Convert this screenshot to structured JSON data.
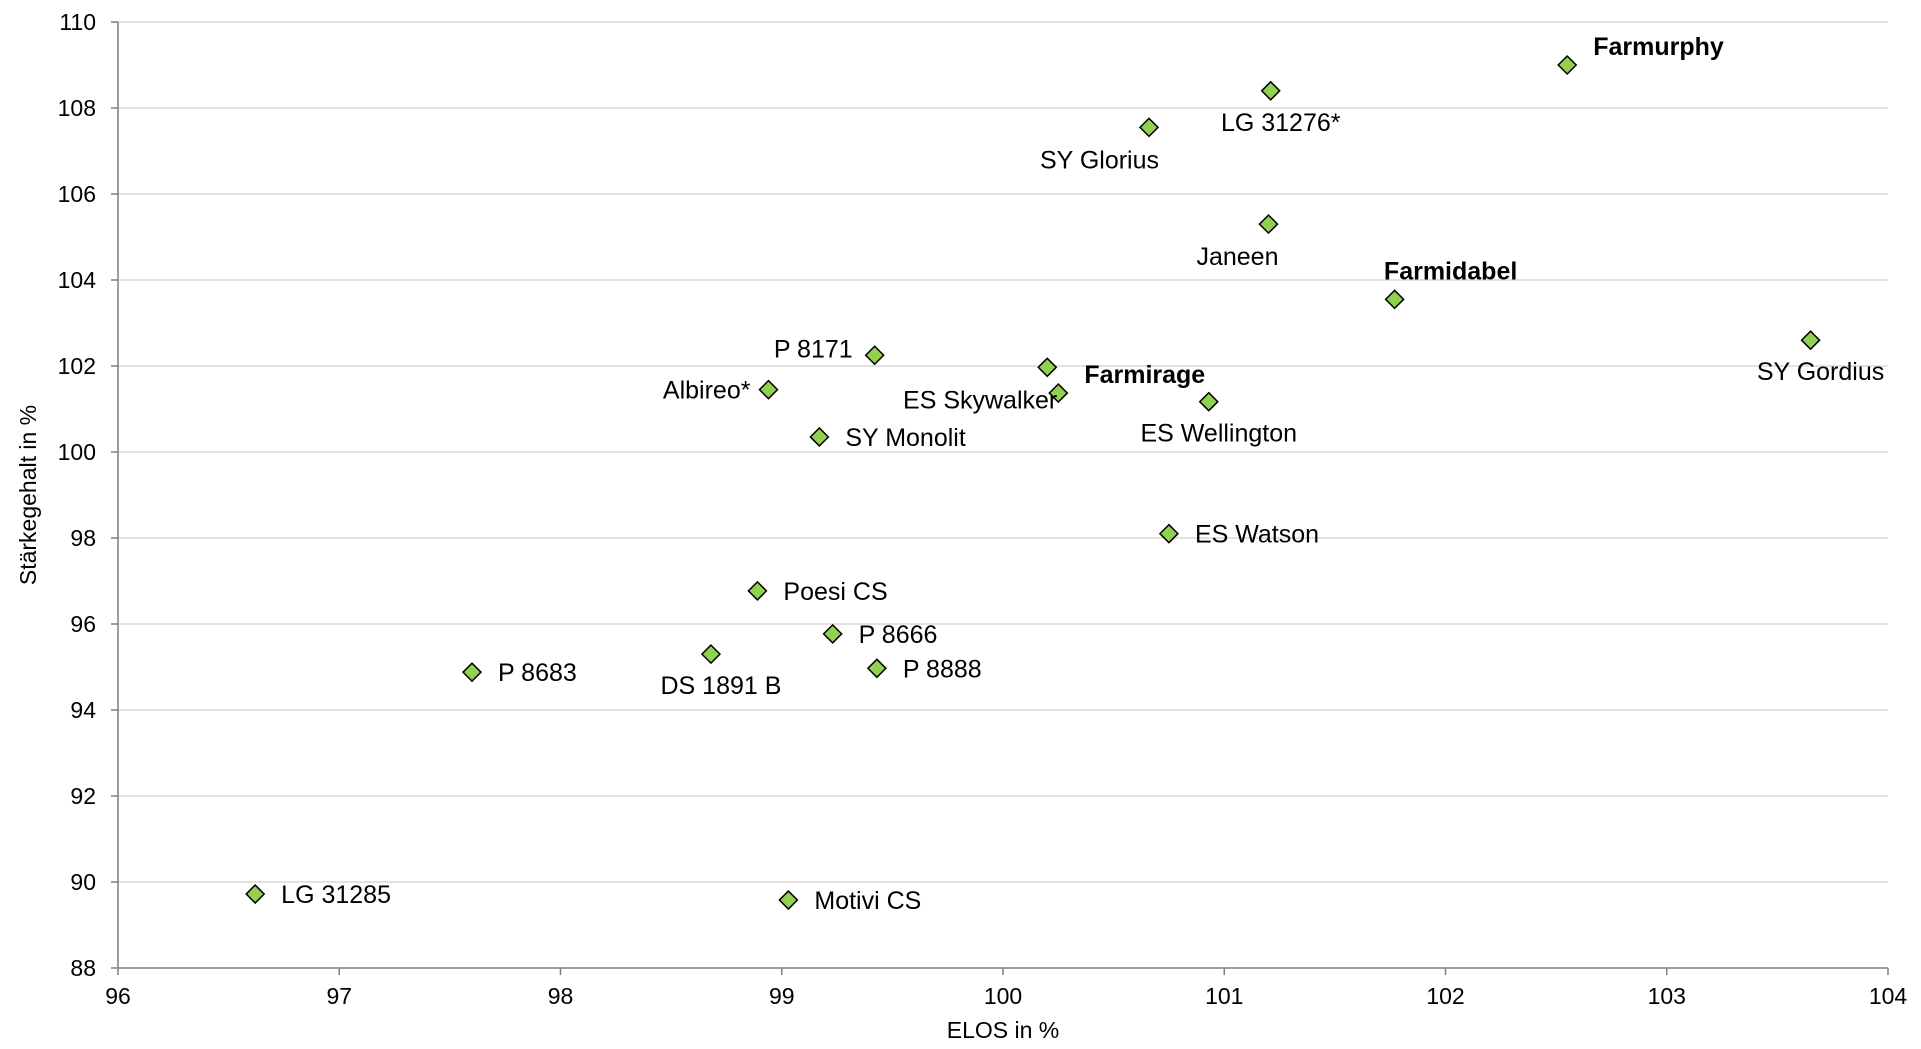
{
  "chart_data": {
    "type": "scatter",
    "title": "",
    "xlabel": "ELOS in %",
    "ylabel": "Stärkegehalt in %",
    "xlim": [
      96,
      104
    ],
    "ylim": [
      88,
      110
    ],
    "xticks": [
      96,
      97,
      98,
      99,
      100,
      101,
      102,
      103,
      104
    ],
    "yticks": [
      88,
      90,
      92,
      94,
      96,
      98,
      100,
      102,
      104,
      106,
      108,
      110
    ],
    "grid": "horizontal",
    "legend": "none",
    "marker_color": "#92d050",
    "points": [
      {
        "label": "Farmurphy",
        "x": 102.55,
        "y": 109.0,
        "bold": true,
        "pos": "above-right"
      },
      {
        "label": "LG 31276*",
        "x": 101.21,
        "y": 108.4,
        "bold": false,
        "pos": "below"
      },
      {
        "label": "SY Glorius",
        "x": 100.66,
        "y": 107.55,
        "bold": false,
        "pos": "below-left"
      },
      {
        "label": "Janeen",
        "x": 101.2,
        "y": 105.3,
        "bold": false,
        "pos": "below-left"
      },
      {
        "label": "Farmidabel",
        "x": 101.77,
        "y": 103.55,
        "bold": true,
        "pos": "above"
      },
      {
        "label": "SY Gordius",
        "x": 103.65,
        "y": 102.6,
        "bold": false,
        "pos": "below"
      },
      {
        "label": "P 8171",
        "x": 99.42,
        "y": 102.25,
        "bold": false,
        "pos": "left-up"
      },
      {
        "label": "ES Skywalker",
        "x": 100.2,
        "y": 101.97,
        "bold": false,
        "pos": "below-left"
      },
      {
        "label": "Farmirage",
        "x": 100.25,
        "y": 101.37,
        "bold": true,
        "pos": "above-right"
      },
      {
        "label": "Albireo*",
        "x": 98.94,
        "y": 101.45,
        "bold": false,
        "pos": "left"
      },
      {
        "label": "ES Wellington",
        "x": 100.93,
        "y": 101.17,
        "bold": false,
        "pos": "below"
      },
      {
        "label": "SY Monolit",
        "x": 99.17,
        "y": 100.35,
        "bold": false,
        "pos": "right"
      },
      {
        "label": "ES Watson",
        "x": 100.75,
        "y": 98.1,
        "bold": false,
        "pos": "right"
      },
      {
        "label": "Poesi CS",
        "x": 98.89,
        "y": 96.77,
        "bold": false,
        "pos": "right"
      },
      {
        "label": "P 8666",
        "x": 99.23,
        "y": 95.77,
        "bold": false,
        "pos": "right"
      },
      {
        "label": "DS 1891 B",
        "x": 98.68,
        "y": 95.3,
        "bold": false,
        "pos": "below"
      },
      {
        "label": "P 8888",
        "x": 99.43,
        "y": 94.97,
        "bold": false,
        "pos": "right"
      },
      {
        "label": "P 8683",
        "x": 97.6,
        "y": 94.88,
        "bold": false,
        "pos": "right"
      },
      {
        "label": "LG 31285",
        "x": 96.62,
        "y": 89.72,
        "bold": false,
        "pos": "right"
      },
      {
        "label": "Motivi CS",
        "x": 99.03,
        "y": 89.58,
        "bold": false,
        "pos": "right"
      }
    ]
  }
}
